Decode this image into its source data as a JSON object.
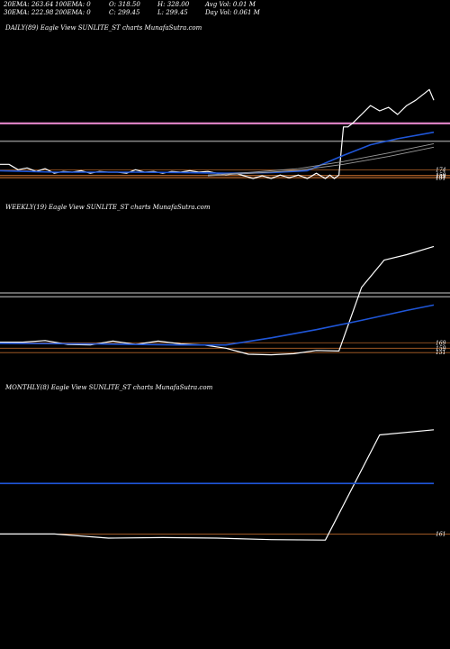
{
  "header": {
    "line1": [
      {
        "key": "ema20",
        "text": "20EMA: 263.64"
      },
      {
        "key": "ema100",
        "text": "100EMA: 0"
      },
      {
        "key": "open",
        "text": "O: 318.50"
      },
      {
        "key": "high",
        "text": "H: 328.00"
      },
      {
        "key": "avgvol",
        "text": "Avg Vol: 0.01 M"
      }
    ],
    "line2": [
      {
        "key": "ema30",
        "text": "30EMA: 222.98"
      },
      {
        "key": "ema200",
        "text": "200EMA: 0"
      },
      {
        "key": "close",
        "text": "C: 299.45"
      },
      {
        "key": "low",
        "text": "L: 299.45"
      },
      {
        "key": "dayvol",
        "text": "Day Vol: 0.061 M"
      }
    ]
  },
  "colors": {
    "background": "#000000",
    "price": "#ffffff",
    "ema_blue": "#1f56d8",
    "ma_gray": "#9a9a9a",
    "resistance": "#d87fc0",
    "support": "#b5652a",
    "level_gray": "#888888"
  },
  "chart_data": [
    {
      "type": "line",
      "panel": "daily",
      "title": "DAILY(89) Eagle  View  SUNLITE_ST charts MunafaSutra.com",
      "ylim": [
        120,
        550
      ],
      "tick_labels": [
        "174",
        "159",
        "155",
        "151"
      ],
      "series": [
        {
          "role": "price",
          "x": [
            0,
            10,
            20,
            30,
            40,
            50,
            60,
            70,
            80,
            90,
            100,
            110,
            120,
            130,
            140,
            150,
            160,
            170,
            180,
            190,
            200,
            210,
            220,
            230,
            240,
            250,
            260,
            270,
            280,
            290,
            300,
            310,
            320,
            330,
            340,
            350,
            360,
            365,
            370,
            375,
            380,
            385,
            390,
            400,
            410,
            420,
            430,
            440,
            450,
            460,
            470,
            475,
            480
          ],
          "values": [
            190,
            190,
            175,
            180,
            170,
            178,
            165,
            170,
            168,
            172,
            165,
            170,
            168,
            168,
            165,
            175,
            168,
            170,
            165,
            170,
            168,
            172,
            168,
            170,
            165,
            160,
            165,
            158,
            150,
            158,
            150,
            160,
            152,
            160,
            150,
            165,
            150,
            160,
            150,
            160,
            295,
            295,
            305,
            330,
            355,
            340,
            350,
            330,
            355,
            370,
            390,
            400,
            370
          ]
        },
        {
          "role": "ema_blue",
          "x": [
            0,
            30,
            60,
            100,
            150,
            200,
            250,
            300,
            340,
            380,
            410,
            440,
            480
          ],
          "values": [
            172,
            170,
            168,
            168,
            168,
            167,
            165,
            167,
            172,
            215,
            245,
            262,
            280
          ]
        },
        {
          "role": "ma_gray_1",
          "x": [
            230,
            280,
            330,
            380,
            430,
            480
          ],
          "values": [
            160,
            168,
            178,
            198,
            222,
            248
          ]
        },
        {
          "role": "ma_gray_2",
          "x": [
            230,
            280,
            330,
            380,
            430,
            480
          ],
          "values": [
            158,
            165,
            173,
            190,
            212,
            238
          ]
        }
      ],
      "levels": [
        {
          "role": "resistance",
          "value": 305
        },
        {
          "role": "gray",
          "value": 255
        },
        {
          "role": "support",
          "value": 174
        },
        {
          "role": "support",
          "value": 159
        },
        {
          "role": "support",
          "value": 155
        },
        {
          "role": "support",
          "value": 151
        }
      ]
    },
    {
      "type": "line",
      "panel": "weekly",
      "title": "WEEKLY(19) Eagle  View  SUNLITE_ST charts MunafaSutra.com",
      "ylim": [
        120,
        400
      ],
      "tick_labels": [
        "169",
        "159",
        "151"
      ],
      "series": [
        {
          "role": "price",
          "x": [
            0,
            25,
            50,
            75,
            100,
            125,
            150,
            175,
            200,
            225,
            250,
            275,
            300,
            325,
            350,
            375,
            400,
            425,
            450,
            480
          ],
          "values": [
            170,
            170,
            173,
            166,
            165,
            172,
            166,
            172,
            167,
            165,
            159,
            148,
            147,
            149,
            155,
            154,
            270,
            320,
            330,
            345
          ]
        },
        {
          "role": "ema_blue",
          "x": [
            0,
            100,
            200,
            250,
            300,
            350,
            400,
            450,
            480
          ],
          "values": [
            168,
            167,
            165,
            165,
            178,
            193,
            210,
            228,
            238
          ]
        }
      ],
      "levels": [
        {
          "role": "gray",
          "value": 260
        },
        {
          "role": "gray",
          "value": 253
        },
        {
          "role": "support",
          "value": 169
        },
        {
          "role": "support",
          "value": 159
        },
        {
          "role": "support",
          "value": 151
        }
      ]
    },
    {
      "type": "line",
      "panel": "monthly",
      "title": "MONTHLY(8) Eagle  View  SUNLITE_ST charts MunafaSutra.com",
      "ylim": [
        130,
        430
      ],
      "tick_labels": [
        "161"
      ],
      "series": [
        {
          "role": "price",
          "x": [
            0,
            60,
            120,
            180,
            240,
            300,
            360,
            420,
            480
          ],
          "values": [
            161,
            161,
            153,
            154,
            153,
            150,
            149,
            355,
            365
          ]
        },
        {
          "role": "ema_blue",
          "x": [
            0,
            480
          ],
          "values": [
            260,
            260
          ]
        }
      ],
      "levels": [
        {
          "role": "support",
          "value": 161
        }
      ]
    }
  ]
}
